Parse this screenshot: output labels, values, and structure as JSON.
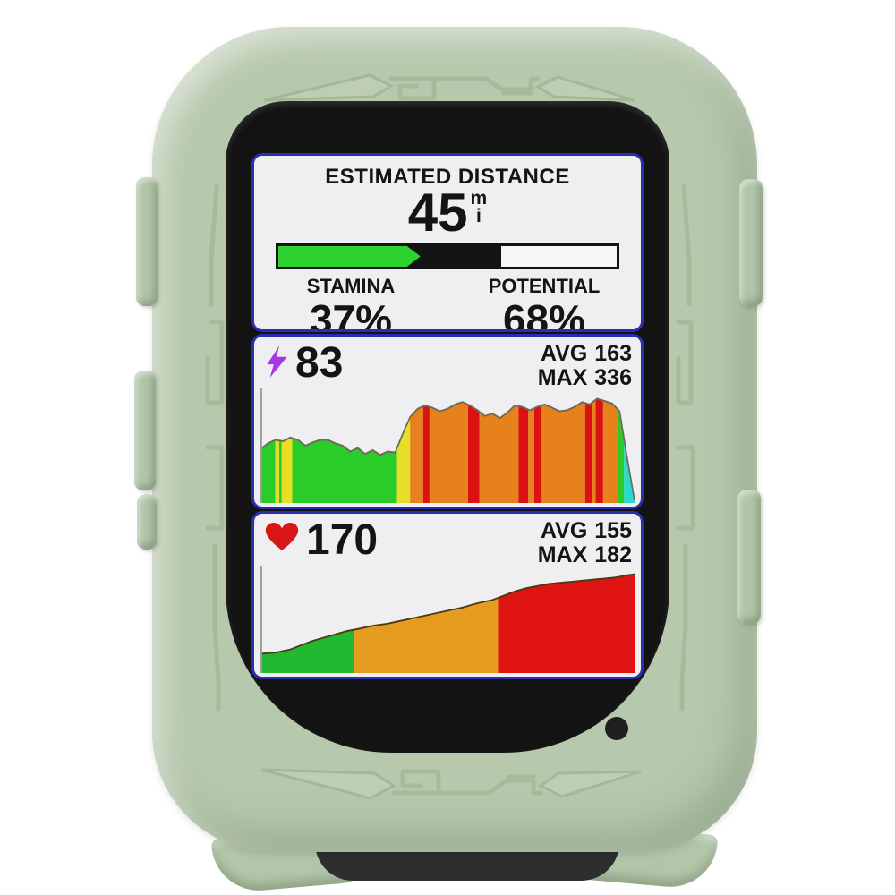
{
  "device": {
    "kind": "bike-computer-in-silicone-case",
    "case_color": "#b7c9ad"
  },
  "colors": {
    "case": "#b7c9ad",
    "navy_border": "#2d2db2",
    "display_bg": "#efeef1",
    "green_accent": "#2ed22e",
    "purple_bolt": "#a837e8",
    "red_heart": "#d81616"
  },
  "screen": {
    "fields": {
      "distance": {
        "title": "ESTIMATED DISTANCE",
        "value": "45",
        "unit_top": "m",
        "unit_bottom": "i",
        "bar": {
          "green_pct": 42,
          "dark_pct": 66
        },
        "stamina_label": "STAMINA",
        "stamina_value": "37%",
        "potential_label": "POTENTIAL",
        "potential_value": "68%"
      },
      "power": {
        "icon": "lightning-bolt",
        "value": "83",
        "avg_label": "AVG",
        "avg_value": "163",
        "max_label": "MAX",
        "max_value": "336"
      },
      "heart": {
        "icon": "heart",
        "value": "170",
        "avg_label": "AVG",
        "avg_value": "155",
        "max_label": "MAX",
        "max_value": "182"
      }
    }
  },
  "chart_data": [
    {
      "id": "power",
      "type": "area",
      "title": "power graph (watts over ride)",
      "ylim": [
        0,
        336
      ],
      "outline": "#6e6a58",
      "points": [
        [
          0,
          158
        ],
        [
          0.02,
          175
        ],
        [
          0.04,
          185
        ],
        [
          0.06,
          181
        ],
        [
          0.08,
          192
        ],
        [
          0.1,
          185
        ],
        [
          0.12,
          168
        ],
        [
          0.14,
          178
        ],
        [
          0.16,
          185
        ],
        [
          0.18,
          185
        ],
        [
          0.2,
          175
        ],
        [
          0.22,
          168
        ],
        [
          0.24,
          151
        ],
        [
          0.26,
          161
        ],
        [
          0.28,
          144
        ],
        [
          0.3,
          155
        ],
        [
          0.32,
          141
        ],
        [
          0.34,
          151
        ],
        [
          0.36,
          148
        ],
        [
          0.38,
          202
        ],
        [
          0.4,
          252
        ],
        [
          0.42,
          276
        ],
        [
          0.44,
          286
        ],
        [
          0.46,
          279
        ],
        [
          0.48,
          269
        ],
        [
          0.5,
          276
        ],
        [
          0.52,
          289
        ],
        [
          0.54,
          296
        ],
        [
          0.56,
          286
        ],
        [
          0.58,
          272
        ],
        [
          0.6,
          255
        ],
        [
          0.62,
          262
        ],
        [
          0.64,
          249
        ],
        [
          0.66,
          265
        ],
        [
          0.68,
          286
        ],
        [
          0.7,
          282
        ],
        [
          0.72,
          272
        ],
        [
          0.74,
          282
        ],
        [
          0.76,
          289
        ],
        [
          0.78,
          279
        ],
        [
          0.8,
          269
        ],
        [
          0.82,
          272
        ],
        [
          0.84,
          282
        ],
        [
          0.86,
          296
        ],
        [
          0.88,
          289
        ],
        [
          0.9,
          306
        ],
        [
          0.92,
          299
        ],
        [
          0.94,
          292
        ],
        [
          0.96,
          269
        ],
        [
          0.98,
          134
        ],
        [
          1,
          7
        ]
      ],
      "zones": [
        [
          0,
          0.04,
          "#29cc29"
        ],
        [
          0.04,
          0.05,
          "#e6df25"
        ],
        [
          0.05,
          0.057,
          "#29cc29"
        ],
        [
          0.057,
          0.085,
          "#e6df25"
        ],
        [
          0.085,
          0.365,
          "#29cc29"
        ],
        [
          0.365,
          0.4,
          "#e6df25"
        ],
        [
          0.4,
          0.435,
          "#e7811c"
        ],
        [
          0.435,
          0.452,
          "#dc1212"
        ],
        [
          0.452,
          0.555,
          "#e7811c"
        ],
        [
          0.555,
          0.585,
          "#dc1212"
        ],
        [
          0.585,
          0.69,
          "#e7811c"
        ],
        [
          0.69,
          0.716,
          "#dc1212"
        ],
        [
          0.716,
          0.732,
          "#e7811c"
        ],
        [
          0.732,
          0.752,
          "#dc1212"
        ],
        [
          0.752,
          0.868,
          "#e7811c"
        ],
        [
          0.868,
          0.886,
          "#dc1212"
        ],
        [
          0.886,
          0.896,
          "#e7811c"
        ],
        [
          0.896,
          0.916,
          "#dc1212"
        ],
        [
          0.916,
          0.955,
          "#e7811c"
        ],
        [
          0.955,
          0.972,
          "#29cc29"
        ],
        [
          0.972,
          1,
          "#2cd9cf"
        ]
      ]
    },
    {
      "id": "heart-rate",
      "type": "area",
      "title": "heart-rate graph (bpm over ride)",
      "ylim": [
        90,
        190
      ],
      "outline": "#4c3a12",
      "points": [
        [
          0,
          108
        ],
        [
          0.04,
          109
        ],
        [
          0.08,
          112
        ],
        [
          0.11,
          116
        ],
        [
          0.14,
          120
        ],
        [
          0.17,
          123
        ],
        [
          0.2,
          126
        ],
        [
          0.23,
          129
        ],
        [
          0.26,
          131
        ],
        [
          0.3,
          134
        ],
        [
          0.34,
          136
        ],
        [
          0.38,
          139
        ],
        [
          0.42,
          142
        ],
        [
          0.46,
          145
        ],
        [
          0.5,
          148
        ],
        [
          0.54,
          151
        ],
        [
          0.58,
          155
        ],
        [
          0.62,
          158
        ],
        [
          0.65,
          162
        ],
        [
          0.68,
          166
        ],
        [
          0.71,
          169
        ],
        [
          0.74,
          171
        ],
        [
          0.77,
          173
        ],
        [
          0.8,
          174
        ],
        [
          0.83,
          175
        ],
        [
          0.86,
          176
        ],
        [
          0.89,
          177
        ],
        [
          0.92,
          178
        ],
        [
          0.95,
          179
        ],
        [
          0.98,
          181
        ],
        [
          1,
          182
        ]
      ],
      "zones": [
        [
          0,
          0.25,
          "#23b832"
        ],
        [
          0.25,
          0.635,
          "#e59b1e"
        ],
        [
          0.635,
          1,
          "#e01313"
        ]
      ]
    }
  ]
}
